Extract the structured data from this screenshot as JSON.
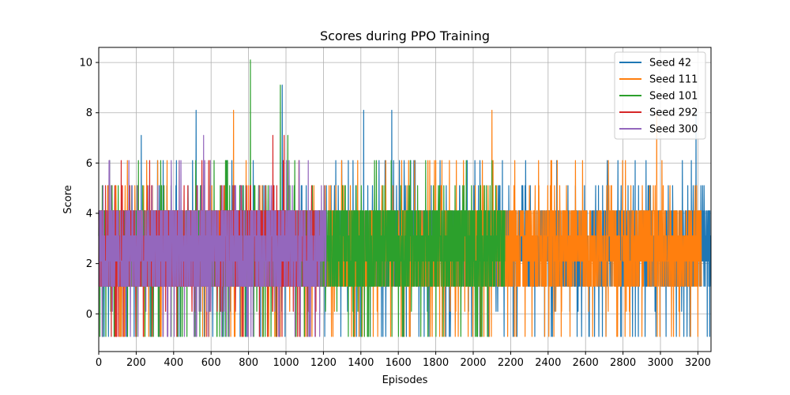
{
  "chart_data": {
    "type": "line",
    "title": "Scores during PPO Training",
    "xlabel": "Episodes",
    "ylabel": "Score",
    "xlim": [
      0,
      3270
    ],
    "ylim": [
      -1.5,
      10.6
    ],
    "xticks": [
      0,
      200,
      400,
      600,
      800,
      1000,
      1200,
      1400,
      1600,
      1800,
      2000,
      2200,
      2400,
      2600,
      2800,
      3000,
      3200
    ],
    "yticks": [
      0,
      2,
      4,
      6,
      8,
      10
    ],
    "grid": true,
    "legend_position": "top-right",
    "series": [
      {
        "name": "Seed 42",
        "color": "#1f77b4",
        "episodes": 3270,
        "base_values": [
          1.1,
          2.1,
          3.1,
          4.1
        ],
        "min": -0.9,
        "max": 9.1,
        "spikes": [
          [
            227,
            7.1
          ],
          [
            520,
            8.1
          ],
          [
            980,
            9.1
          ],
          [
            1415,
            8.1
          ],
          [
            1565,
            8.1
          ],
          [
            3190,
            8.1
          ]
        ]
      },
      {
        "name": "Seed 111",
        "color": "#ff7f0e",
        "episodes": 3220,
        "base_values": [
          1.1,
          2.1,
          3.1,
          4.1
        ],
        "min": -0.9,
        "max": 8.1,
        "spikes": [
          [
            720,
            8.1
          ],
          [
            2100,
            8.1
          ],
          [
            2980,
            8.1
          ]
        ]
      },
      {
        "name": "Seed 101",
        "color": "#2ca02c",
        "episodes": 2170,
        "base_values": [
          1.1,
          2.1,
          3.1,
          4.1
        ],
        "min": -0.9,
        "max": 10.1,
        "spikes": [
          [
            810,
            10.1
          ],
          [
            970,
            9.1
          ],
          [
            1010,
            7.1
          ]
        ]
      },
      {
        "name": "Seed 292",
        "color": "#d62728",
        "episodes": 1180,
        "base_values": [
          1.1,
          2.1,
          3.1,
          4.1
        ],
        "min": -0.9,
        "max": 7.1,
        "spikes": [
          [
            930,
            7.1
          ],
          [
            990,
            7.1
          ]
        ]
      },
      {
        "name": "Seed 300",
        "color": "#9467bd",
        "episodes": 1215,
        "base_values": [
          1.1,
          2.1,
          3.1,
          4.1
        ],
        "min": -0.9,
        "max": 7.1,
        "spikes": [
          [
            55,
            6.1
          ],
          [
            560,
            7.1
          ]
        ]
      }
    ]
  }
}
